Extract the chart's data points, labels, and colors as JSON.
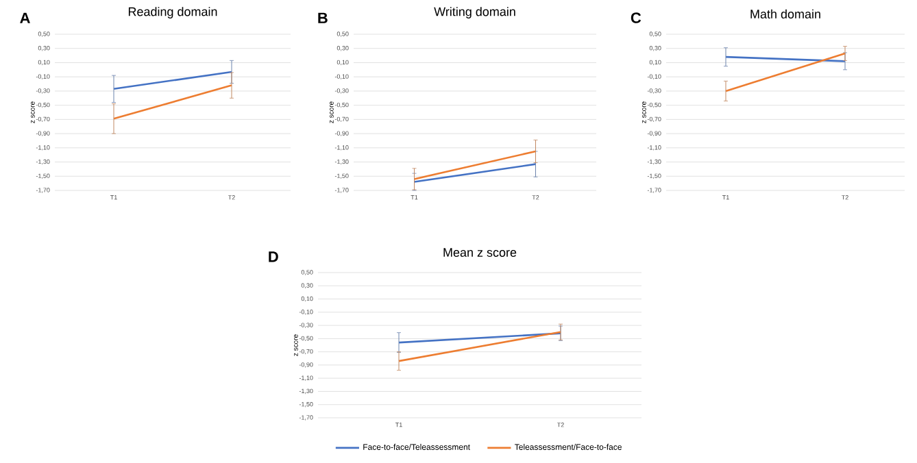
{
  "chart_data": [
    {
      "type": "line",
      "title": "Reading domain",
      "ylabel": "z score",
      "annotations": [
        "A"
      ],
      "categories": [
        "T1",
        "T2"
      ],
      "ylim": [
        -1.7,
        0.5
      ],
      "yticks": [
        {
          "value": 0.5,
          "label": "0,50"
        },
        {
          "value": 0.3,
          "label": "0,30"
        },
        {
          "value": 0.1,
          "label": "0,10"
        },
        {
          "value": -0.1,
          "label": "-0,10"
        },
        {
          "value": -0.3,
          "label": "-0,30"
        },
        {
          "value": -0.5,
          "label": "-0,50"
        },
        {
          "value": -0.7,
          "label": "-0,70"
        },
        {
          "value": -0.9,
          "label": "-0,90"
        },
        {
          "value": -1.1,
          "label": "-1,10"
        },
        {
          "value": -1.3,
          "label": "-1,30"
        },
        {
          "value": -1.5,
          "label": "-1,50"
        },
        {
          "value": -1.7,
          "label": "-1,70"
        }
      ],
      "grid": "y",
      "marker": "none",
      "series": [
        {
          "color": "#4472c4",
          "values": [
            -0.27,
            -0.03
          ],
          "errors": [
            0.19,
            0.16
          ]
        },
        {
          "color": "#ed7d31",
          "values": [
            -0.69,
            -0.22
          ],
          "errors": [
            0.21,
            0.18
          ]
        }
      ]
    },
    {
      "type": "line",
      "title": "Writing domain",
      "ylabel": "z score",
      "annotations": [
        "B"
      ],
      "categories": [
        "T1",
        "T2"
      ],
      "ylim": [
        -1.7,
        0.5
      ],
      "yticks": [
        {
          "value": 0.5,
          "label": "0,50"
        },
        {
          "value": 0.3,
          "label": "0,30"
        },
        {
          "value": 0.1,
          "label": "0,10"
        },
        {
          "value": -0.1,
          "label": "-0,10"
        },
        {
          "value": -0.3,
          "label": "-0,30"
        },
        {
          "value": -0.5,
          "label": "-0,50"
        },
        {
          "value": -0.7,
          "label": "-0,70"
        },
        {
          "value": -0.9,
          "label": "-0,90"
        },
        {
          "value": -1.1,
          "label": "-1,10"
        },
        {
          "value": -1.3,
          "label": "-1,30"
        },
        {
          "value": -1.5,
          "label": "-1,50"
        },
        {
          "value": -1.7,
          "label": "-1,70"
        }
      ],
      "grid": "y",
      "marker": "none",
      "series": [
        {
          "color": "#4472c4",
          "values": [
            -1.58,
            -1.33
          ],
          "errors": [
            0.12,
            0.18
          ]
        },
        {
          "color": "#ed7d31",
          "values": [
            -1.54,
            -1.15
          ],
          "errors": [
            0.15,
            0.16
          ]
        }
      ]
    },
    {
      "type": "line",
      "title": "Math domain",
      "ylabel": "z score",
      "annotations": [
        "C"
      ],
      "categories": [
        "T1",
        "T2"
      ],
      "ylim": [
        -1.7,
        0.5
      ],
      "yticks": [
        {
          "value": 0.5,
          "label": "0,50"
        },
        {
          "value": 0.3,
          "label": "0,30"
        },
        {
          "value": 0.1,
          "label": "0,10"
        },
        {
          "value": -0.1,
          "label": "-0,10"
        },
        {
          "value": -0.3,
          "label": "-0,30"
        },
        {
          "value": -0.5,
          "label": "-0,50"
        },
        {
          "value": -0.7,
          "label": "-0,70"
        },
        {
          "value": -0.9,
          "label": "-0,90"
        },
        {
          "value": -1.1,
          "label": "-1,10"
        },
        {
          "value": -1.3,
          "label": "-1,30"
        },
        {
          "value": -1.5,
          "label": "-1,50"
        },
        {
          "value": -1.7,
          "label": "-1,70"
        }
      ],
      "grid": "y",
      "marker": "none",
      "series": [
        {
          "color": "#4472c4",
          "values": [
            0.18,
            0.12
          ],
          "errors": [
            0.13,
            0.12
          ]
        },
        {
          "color": "#ed7d31",
          "values": [
            -0.3,
            0.23
          ],
          "errors": [
            0.14,
            0.1
          ]
        }
      ]
    },
    {
      "type": "line",
      "title": "Mean z score",
      "ylabel": "z score",
      "annotations": [
        "D"
      ],
      "categories": [
        "T1",
        "T2"
      ],
      "ylim": [
        -1.7,
        0.5
      ],
      "yticks": [
        {
          "value": 0.5,
          "label": "0,50"
        },
        {
          "value": 0.3,
          "label": "0,30"
        },
        {
          "value": 0.1,
          "label": "0,10"
        },
        {
          "value": -0.1,
          "label": "-0,10"
        },
        {
          "value": -0.3,
          "label": "-0,30"
        },
        {
          "value": -0.5,
          "label": "-0,50"
        },
        {
          "value": -0.7,
          "label": "-0,70"
        },
        {
          "value": -0.9,
          "label": "-0,90"
        },
        {
          "value": -1.1,
          "label": "-1,10"
        },
        {
          "value": -1.3,
          "label": "-1,30"
        },
        {
          "value": -1.5,
          "label": "-1,50"
        },
        {
          "value": -1.7,
          "label": "-1,70"
        }
      ],
      "grid": "y",
      "marker": "none",
      "legend": "bottom",
      "series": [
        {
          "name": "Face-to-face/Teleassessment",
          "color": "#4472c4",
          "values": [
            -0.56,
            -0.42
          ],
          "errors": [
            0.15,
            0.11
          ]
        },
        {
          "name": "Teleassessment/Face-to-face",
          "color": "#ed7d31",
          "values": [
            -0.84,
            -0.4
          ],
          "errors": [
            0.14,
            0.12
          ]
        }
      ]
    }
  ]
}
